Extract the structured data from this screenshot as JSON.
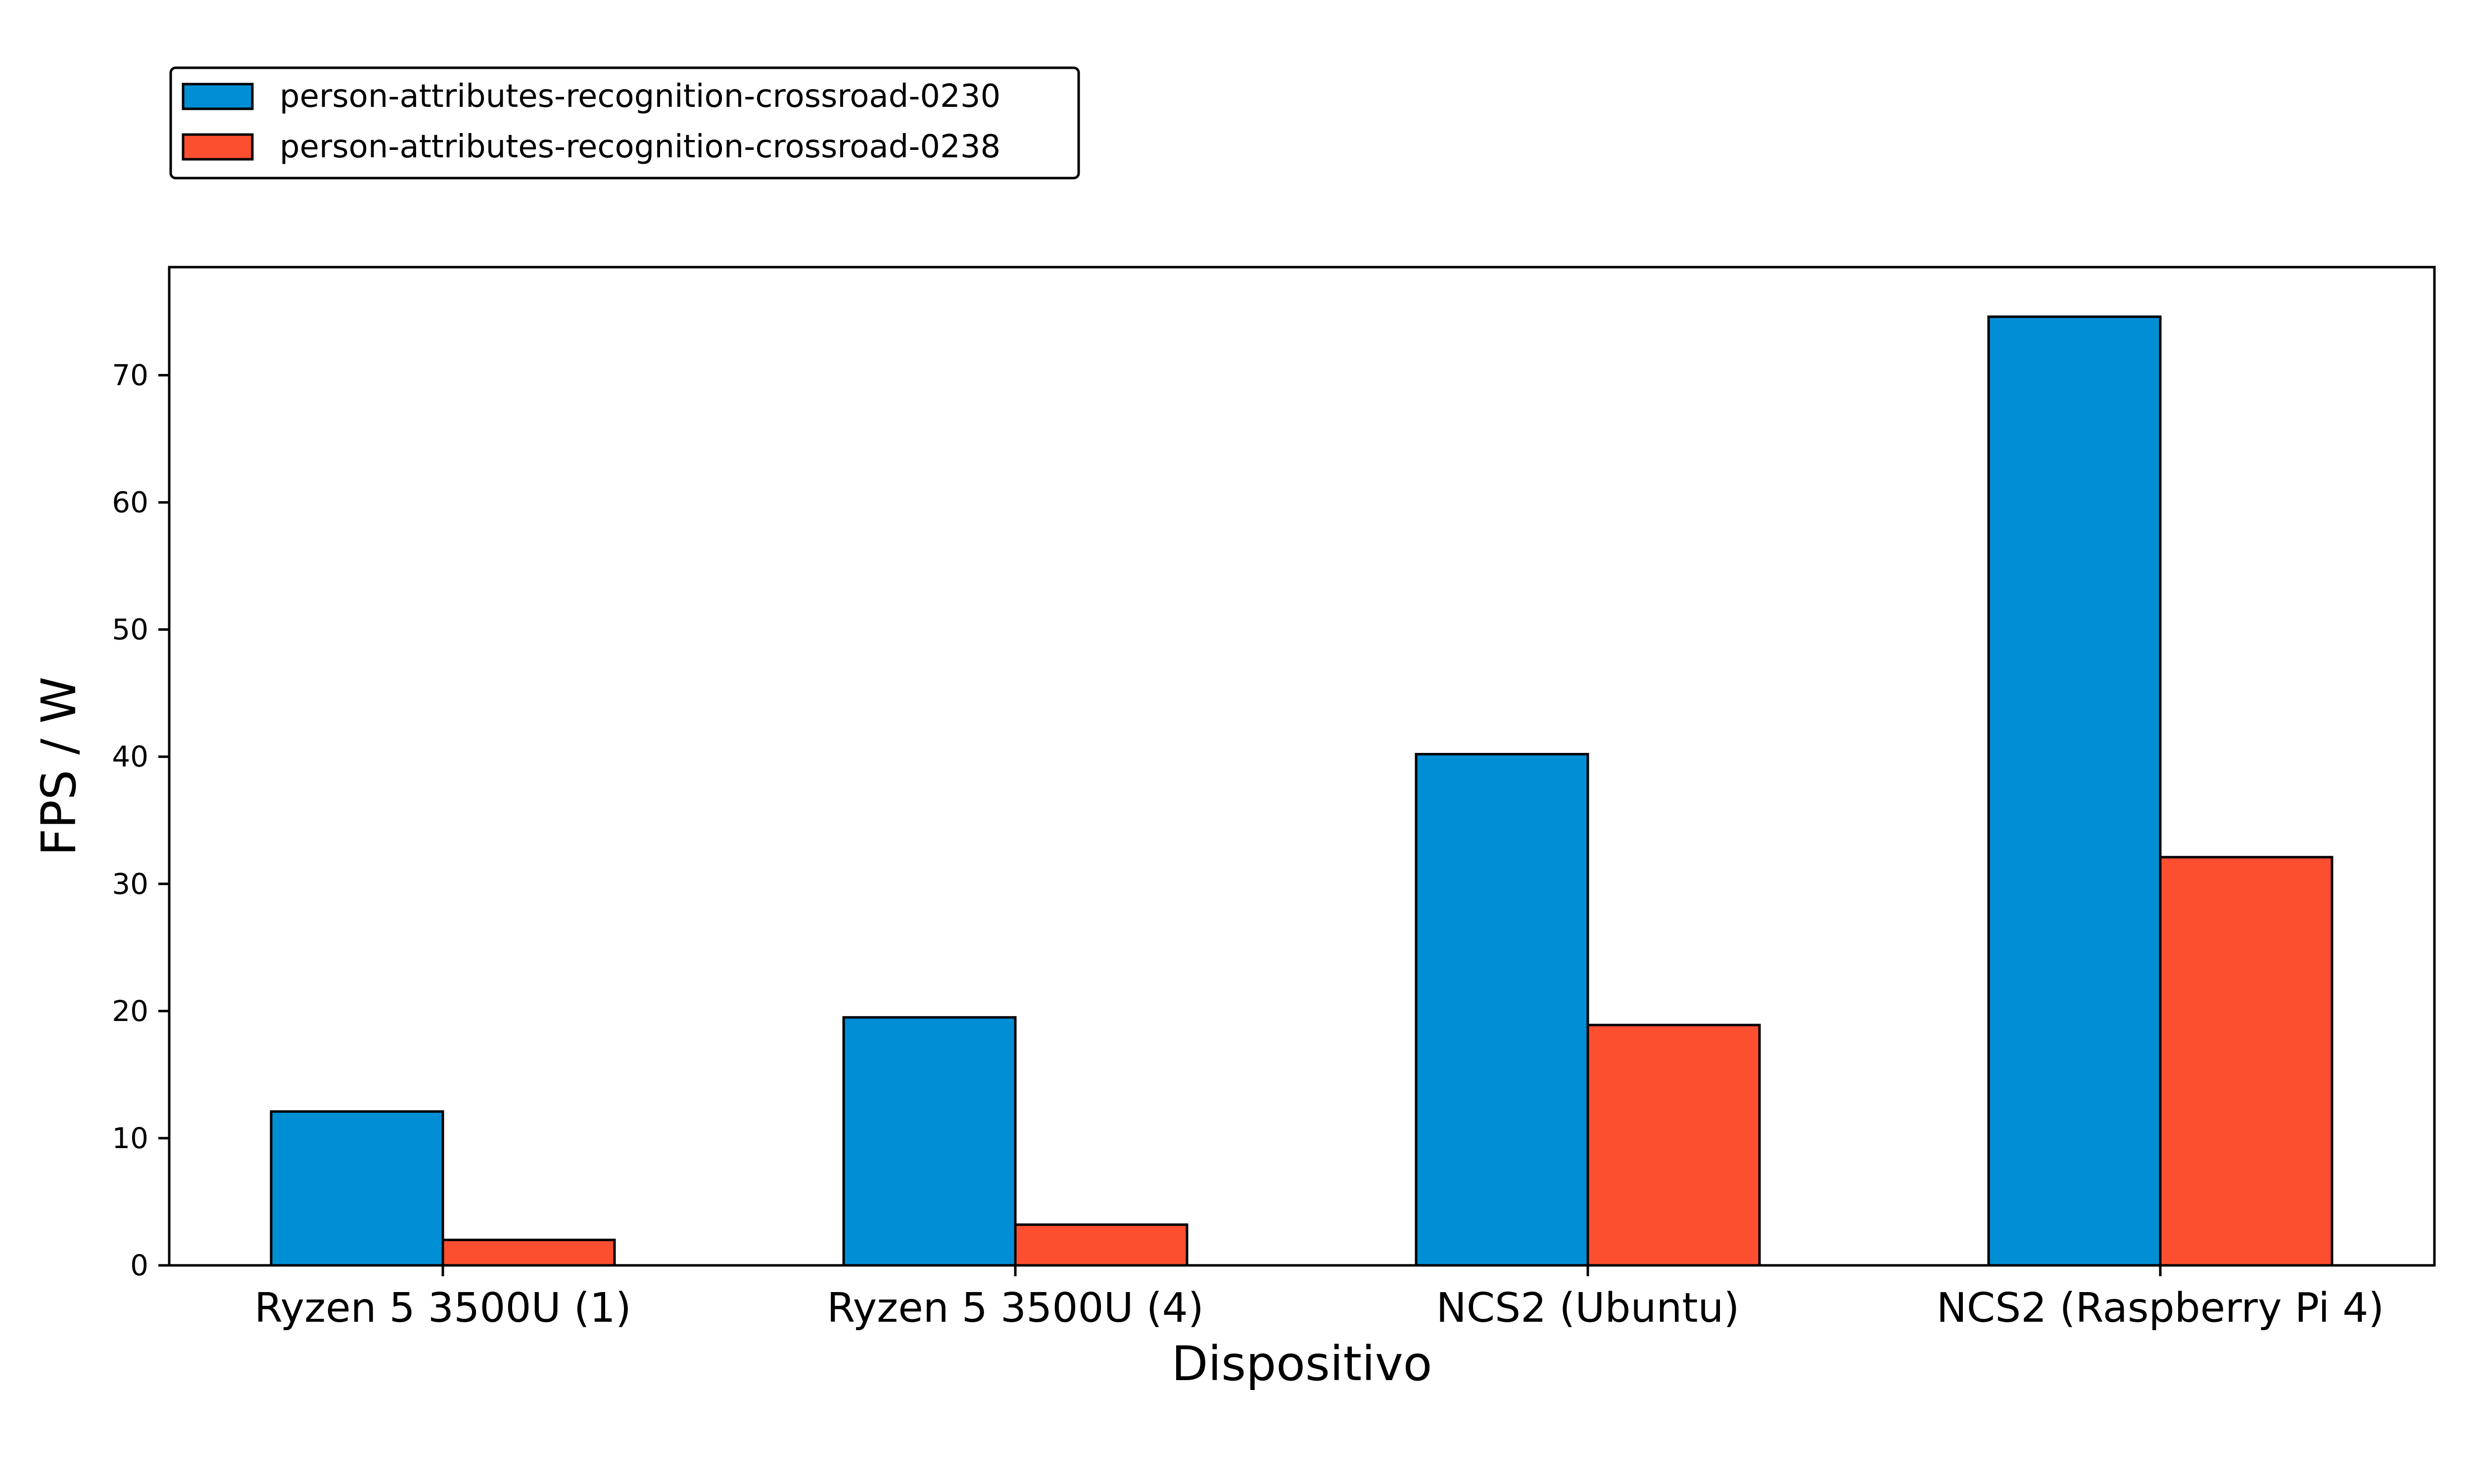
{
  "chart_data": {
    "type": "bar",
    "title": "",
    "xlabel": "Dispositivo",
    "ylabel": "FPS / W",
    "categories": [
      "Ryzen 5 3500U (1)",
      "Ryzen 5 3500U (4)",
      "NCS2 (Ubuntu)",
      "NCS2 (Raspberry Pi 4)"
    ],
    "series": [
      {
        "name": "person-attributes-recognition-crossroad-0230",
        "color": "#008fd5",
        "values": [
          12.1,
          19.5,
          40.2,
          74.6
        ]
      },
      {
        "name": "person-attributes-recognition-crossroad-0238",
        "color": "#fc4f30",
        "values": [
          2.0,
          3.2,
          18.9,
          32.1
        ]
      }
    ],
    "ylim": [
      0,
      78.5
    ],
    "yticks": [
      0,
      10,
      20,
      30,
      40,
      50,
      60,
      70
    ],
    "grid": false,
    "legend_position": "top-left, above plot"
  }
}
